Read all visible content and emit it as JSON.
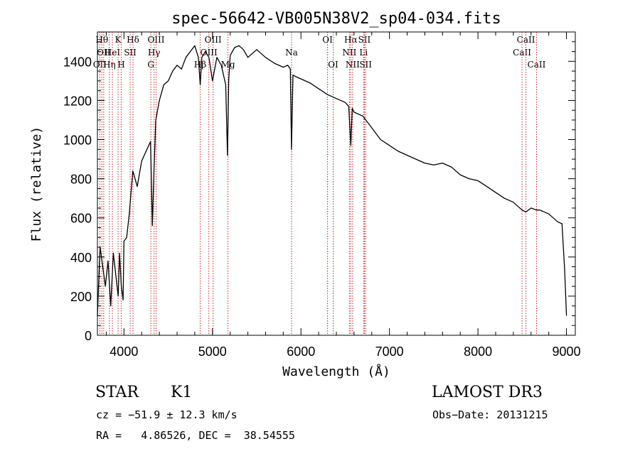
{
  "chart_data": {
    "type": "line",
    "title": "spec-56642-VB005N38V2_sp04-034.fits",
    "xlabel": "Wavelength (Å)",
    "ylabel": "Flux (relative)",
    "xlim": [
      3700,
      9100
    ],
    "ylim": [
      0,
      1550
    ],
    "xticks": [
      4000,
      5000,
      6000,
      7000,
      8000,
      9000
    ],
    "yticks": [
      0,
      200,
      400,
      600,
      800,
      1000,
      1200,
      1400
    ],
    "series": [
      {
        "name": "flux",
        "x": [
          3700,
          3730,
          3760,
          3790,
          3820,
          3850,
          3880,
          3910,
          3935,
          3950,
          3970,
          3990,
          4000,
          4030,
          4060,
          4100,
          4150,
          4200,
          4250,
          4300,
          4320,
          4340,
          4360,
          4400,
          4450,
          4500,
          4550,
          4600,
          4650,
          4700,
          4750,
          4800,
          4840,
          4862,
          4880,
          4920,
          4960,
          5000,
          5050,
          5100,
          5150,
          5170,
          5183,
          5200,
          5250,
          5300,
          5350,
          5400,
          5450,
          5500,
          5600,
          5700,
          5800,
          5850,
          5880,
          5893,
          5910,
          5950,
          6000,
          6100,
          6200,
          6300,
          6400,
          6500,
          6540,
          6563,
          6580,
          6600,
          6700,
          6800,
          6900,
          7000,
          7100,
          7200,
          7300,
          7400,
          7500,
          7600,
          7700,
          7800,
          7900,
          8000,
          8100,
          8200,
          8300,
          8400,
          8498,
          8542,
          8600,
          8662,
          8700,
          8800,
          8900,
          8950,
          8980,
          9000
        ],
        "y": [
          100,
          450,
          350,
          250,
          380,
          150,
          420,
          300,
          200,
          420,
          250,
          180,
          480,
          500,
          620,
          840,
          760,
          890,
          940,
          990,
          560,
          850,
          1100,
          1200,
          1280,
          1300,
          1350,
          1380,
          1360,
          1420,
          1450,
          1480,
          1420,
          1280,
          1420,
          1450,
          1420,
          1300,
          1420,
          1380,
          1280,
          920,
          1300,
          1430,
          1470,
          1480,
          1460,
          1420,
          1440,
          1460,
          1420,
          1390,
          1370,
          1380,
          1360,
          950,
          1330,
          1320,
          1310,
          1290,
          1260,
          1230,
          1210,
          1190,
          1170,
          970,
          1160,
          1140,
          1120,
          1060,
          1000,
          970,
          940,
          920,
          900,
          880,
          870,
          880,
          860,
          820,
          800,
          790,
          760,
          730,
          700,
          680,
          640,
          630,
          650,
          640,
          640,
          620,
          580,
          570,
          330,
          100
        ]
      }
    ],
    "line_markers": [
      {
        "wave": 3727,
        "label": "OII",
        "row": 2
      },
      {
        "wave": 3750,
        "label": "Hθ",
        "row": 0
      },
      {
        "wave": 3771,
        "label": "OII",
        "row": 1
      },
      {
        "wave": 3835,
        "label": "Hη",
        "row": 2
      },
      {
        "wave": 3869,
        "label": "HeI",
        "row": 1
      },
      {
        "wave": 3934,
        "label": "K",
        "row": 0
      },
      {
        "wave": 3969,
        "label": "H",
        "row": 2
      },
      {
        "wave": 4070,
        "label": "SII",
        "row": 1
      },
      {
        "wave": 4102,
        "label": "Hδ",
        "row": 0
      },
      {
        "wave": 4304,
        "label": "G",
        "row": 2
      },
      {
        "wave": 4340,
        "label": "Hγ",
        "row": 1
      },
      {
        "wave": 4363,
        "label": "OIII",
        "row": 0
      },
      {
        "wave": 4861,
        "label": "Hβ",
        "row": 2
      },
      {
        "wave": 4959,
        "label": "OIII",
        "row": 1
      },
      {
        "wave": 5007,
        "label": "OIII",
        "row": 0
      },
      {
        "wave": 5175,
        "label": "Mg",
        "row": 2
      },
      {
        "wave": 5893,
        "label": "Na",
        "row": 1
      },
      {
        "wave": 6300,
        "label": "OI",
        "row": 0
      },
      {
        "wave": 6364,
        "label": "OI",
        "row": 2
      },
      {
        "wave": 6548,
        "label": "NII",
        "row": 1
      },
      {
        "wave": 6563,
        "label": "Hα",
        "row": 0
      },
      {
        "wave": 6584,
        "label": "NII",
        "row": 2
      },
      {
        "wave": 6708,
        "label": "Li",
        "row": 1
      },
      {
        "wave": 6717,
        "label": "SII",
        "row": 0
      },
      {
        "wave": 6731,
        "label": "SII",
        "row": 2
      },
      {
        "wave": 8498,
        "label": "CaII",
        "row": 1
      },
      {
        "wave": 8542,
        "label": "CaII",
        "row": 0
      },
      {
        "wave": 8662,
        "label": "CaII",
        "row": 2
      }
    ]
  },
  "info": {
    "class": "STAR",
    "subclass": "K1",
    "survey": "LAMOST DR3",
    "cz": "cz = −51.9 ± 12.3 km/s",
    "obs_date": "Obs−Date: 20131215",
    "coords": "RA =   4.86526, DEC =  38.54555"
  },
  "colors": {
    "spectrum": "#000000",
    "marker": "#cc2222",
    "axes": "#000000"
  }
}
